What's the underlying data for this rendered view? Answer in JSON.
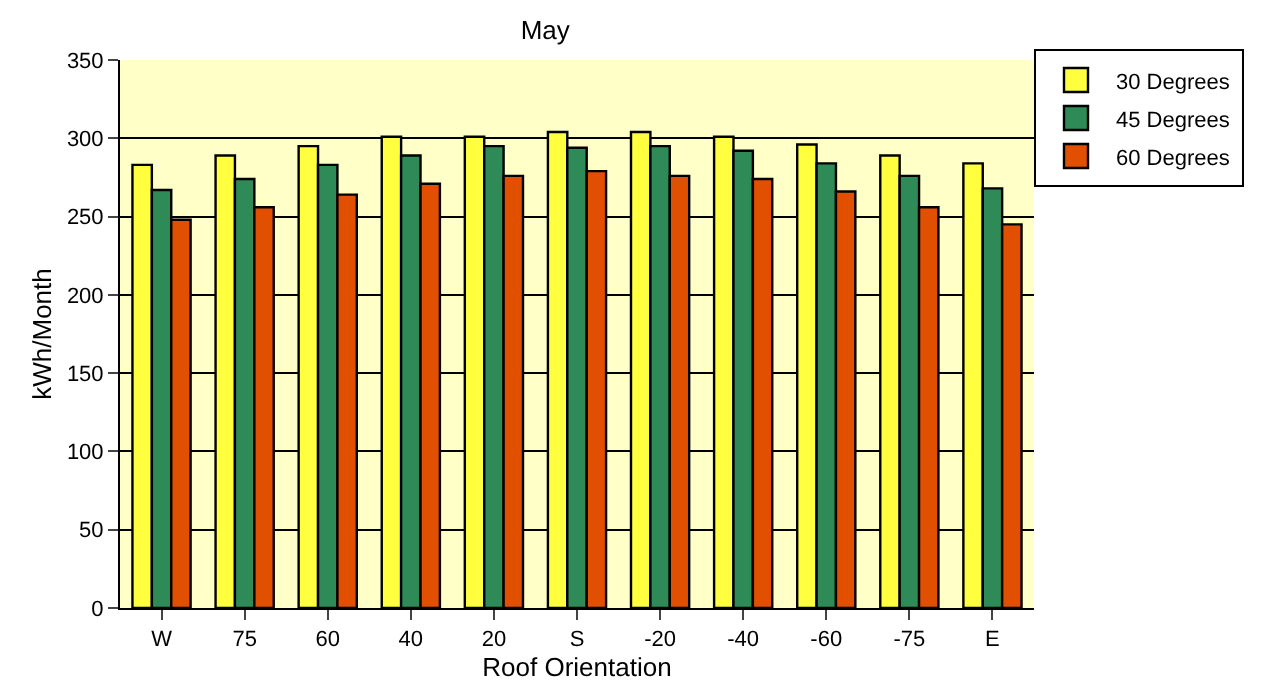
{
  "chart_data": {
    "type": "bar",
    "title": "May",
    "xlabel": "Roof Orientation",
    "ylabel": "kWh/Month",
    "categories": [
      "W",
      "75",
      "60",
      "40",
      "20",
      "S",
      "-20",
      "-40",
      "-60",
      "-75",
      "E"
    ],
    "series": [
      {
        "name": "30 Degrees",
        "color": "#ffff40",
        "values": [
          283,
          289,
          295,
          301,
          301,
          304,
          304,
          301,
          296,
          289,
          284
        ]
      },
      {
        "name": "45 Degrees",
        "color": "#2e8b57",
        "values": [
          267,
          274,
          283,
          289,
          295,
          294,
          295,
          292,
          284,
          276,
          268
        ]
      },
      {
        "name": "60 Degrees",
        "color": "#e05000",
        "values": [
          248,
          256,
          264,
          271,
          276,
          279,
          276,
          274,
          266,
          256,
          245
        ]
      }
    ],
    "ylim": [
      0,
      350
    ],
    "yticks": [
      0,
      50,
      100,
      150,
      200,
      250,
      300,
      350
    ],
    "grid": "y",
    "legend": "top right"
  }
}
